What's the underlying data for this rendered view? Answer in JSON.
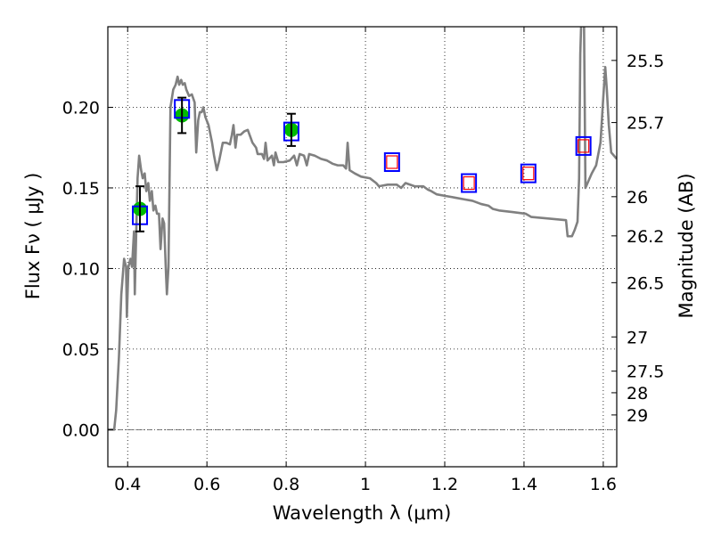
{
  "chart_data": {
    "type": "line",
    "title": "",
    "xlabel": "Wavelength  λ (μm)",
    "ylabel": "Flux  Fν  ( μJy )",
    "ylabel_right": "Magnitude (AB)",
    "xlim": [
      0.35,
      1.634
    ],
    "ylim": [
      -0.023,
      0.25
    ],
    "grid": true,
    "x_ticks": [
      0.4,
      0.6,
      0.8,
      1.0,
      1.2,
      1.4,
      1.6
    ],
    "x_tick_labels": [
      "0.4",
      "0.6",
      "0.8",
      "1",
      "1.2",
      "1.4",
      "1.6"
    ],
    "y_ticks": [
      0.0,
      0.05,
      0.1,
      0.15,
      0.2
    ],
    "y_tick_labels": [
      "0.00",
      "0.05",
      "0.10",
      "0.15",
      "0.20"
    ],
    "right_ticks_mag": [
      25.5,
      25.7,
      26,
      26.2,
      26.5,
      27,
      27.5,
      28,
      29
    ],
    "right_tick_labels": [
      "25.5",
      "25.7",
      "26",
      "26.2",
      "26.5",
      "27",
      "27.5",
      "28",
      "29"
    ],
    "mag_zero_point": 23.9,
    "zero_line": 0.0,
    "colors": {
      "spectrum": "#808080",
      "observed": "#00bb00",
      "model": "#0000ff",
      "model_upper": "#ff0000",
      "errorbar": "#000000"
    },
    "series": [
      {
        "name": "spectrum",
        "x": [
          0.351,
          0.366,
          0.371,
          0.378,
          0.384,
          0.391,
          0.396,
          0.398,
          0.402,
          0.407,
          0.411,
          0.416,
          0.418,
          0.42,
          0.425,
          0.429,
          0.434,
          0.438,
          0.443,
          0.447,
          0.452,
          0.456,
          0.461,
          0.465,
          0.47,
          0.474,
          0.479,
          0.483,
          0.488,
          0.492,
          0.497,
          0.499,
          0.503,
          0.508,
          0.515,
          0.521,
          0.526,
          0.53,
          0.535,
          0.539,
          0.544,
          0.548,
          0.555,
          0.562,
          0.569,
          0.573,
          0.578,
          0.582,
          0.587,
          0.591,
          0.596,
          0.604,
          0.613,
          0.618,
          0.625,
          0.631,
          0.64,
          0.649,
          0.658,
          0.663,
          0.667,
          0.672,
          0.676,
          0.685,
          0.694,
          0.703,
          0.715,
          0.724,
          0.728,
          0.739,
          0.744,
          0.748,
          0.753,
          0.764,
          0.769,
          0.773,
          0.78,
          0.793,
          0.809,
          0.82,
          0.827,
          0.834,
          0.845,
          0.852,
          0.858,
          0.872,
          0.888,
          0.903,
          0.917,
          0.93,
          0.944,
          0.951,
          0.955,
          0.96,
          0.973,
          0.989,
          1.011,
          1.027,
          1.034,
          1.056,
          1.079,
          1.09,
          1.101,
          1.124,
          1.146,
          1.157,
          1.166,
          1.18,
          1.202,
          1.225,
          1.247,
          1.27,
          1.292,
          1.31,
          1.321,
          1.337,
          1.371,
          1.404,
          1.418,
          1.461,
          1.506,
          1.51,
          1.521,
          1.528,
          1.535,
          1.539,
          1.542,
          1.546,
          1.551,
          1.555,
          1.571,
          1.582,
          1.593,
          1.6,
          1.605,
          1.609,
          1.614,
          1.62,
          1.634
        ],
        "y": [
          0,
          0,
          0.012,
          0.045,
          0.084,
          0.106,
          0.101,
          0.07,
          0.101,
          0.106,
          0.101,
          0.123,
          0.084,
          0.106,
          0.156,
          0.17,
          0.161,
          0.156,
          0.159,
          0.148,
          0.153,
          0.142,
          0.148,
          0.136,
          0.139,
          0.134,
          0.134,
          0.112,
          0.131,
          0.128,
          0.095,
          0.084,
          0.101,
          0.2,
          0.211,
          0.214,
          0.219,
          0.214,
          0.217,
          0.214,
          0.215,
          0.211,
          0.207,
          0.208,
          0.203,
          0.172,
          0.192,
          0.197,
          0.197,
          0.2,
          0.194,
          0.189,
          0.178,
          0.17,
          0.161,
          0.167,
          0.178,
          0.178,
          0.177,
          0.183,
          0.189,
          0.175,
          0.183,
          0.183,
          0.185,
          0.186,
          0.178,
          0.175,
          0.171,
          0.171,
          0.168,
          0.178,
          0.167,
          0.17,
          0.164,
          0.172,
          0.166,
          0.166,
          0.167,
          0.17,
          0.164,
          0.171,
          0.17,
          0.164,
          0.171,
          0.17,
          0.168,
          0.167,
          0.165,
          0.164,
          0.164,
          0.162,
          0.178,
          0.161,
          0.159,
          0.157,
          0.156,
          0.153,
          0.151,
          0.152,
          0.152,
          0.15,
          0.153,
          0.151,
          0.151,
          0.149,
          0.148,
          0.146,
          0.145,
          0.144,
          0.143,
          0.142,
          0.14,
          0.139,
          0.137,
          0.136,
          0.135,
          0.134,
          0.132,
          0.131,
          0.13,
          0.12,
          0.12,
          0.124,
          0.129,
          0.156,
          0.233,
          0.266,
          0.266,
          0.15,
          0.159,
          0.164,
          0.178,
          0.206,
          0.225,
          0.211,
          0.189,
          0.172,
          0.168
        ]
      },
      {
        "name": "observed",
        "x": [
          0.431,
          0.537,
          0.813
        ],
        "y": [
          0.137,
          0.195,
          0.186
        ],
        "yerr": [
          0.014,
          0.011,
          0.01
        ]
      },
      {
        "name": "model",
        "x": [
          0.431,
          0.537,
          0.813,
          1.067,
          1.261,
          1.411,
          1.55
        ],
        "y": [
          0.133,
          0.199,
          0.185,
          0.166,
          0.153,
          0.159,
          0.176
        ]
      },
      {
        "name": "model_upper",
        "x": [
          1.067,
          1.261,
          1.411,
          1.55
        ],
        "y": [
          0.166,
          0.153,
          0.159,
          0.176
        ]
      }
    ]
  }
}
